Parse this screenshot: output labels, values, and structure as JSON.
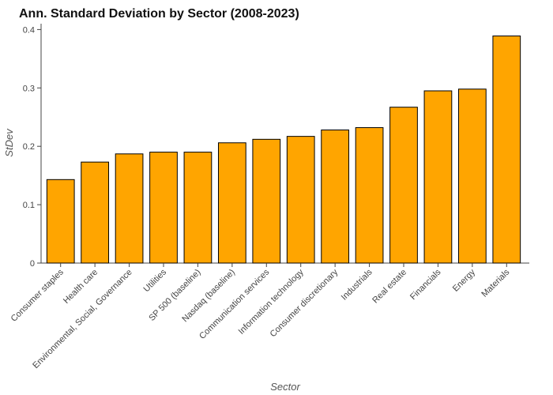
{
  "chart_data": {
    "type": "bar",
    "title": "Ann. Standard Deviation by Sector (2008-2023)",
    "xlabel": "Sector",
    "ylabel": "StDev",
    "ylim": [
      0,
      0.41
    ],
    "yticks": [
      0,
      0.1,
      0.2,
      0.3,
      0.4
    ],
    "ytick_labels": [
      "0",
      "0.1",
      "0.2",
      "0.3",
      "0.4"
    ],
    "grid": false,
    "categories": [
      "Consumer staples",
      "Health care",
      "Environmental, Social, Governance",
      "Utilities",
      "SP 500 (baseline)",
      "Nasdaq (baseline)",
      "Communication services",
      "Information technology",
      "Consumer discretionary",
      "Industrials",
      "Real estate",
      "Financials",
      "Energy",
      "Materials"
    ],
    "values": [
      0.143,
      0.173,
      0.187,
      0.19,
      0.19,
      0.206,
      0.212,
      0.217,
      0.228,
      0.232,
      0.267,
      0.295,
      0.298,
      0.389
    ],
    "colors": {
      "bar_fill": "#FFA500",
      "bar_stroke": "#000000"
    }
  }
}
